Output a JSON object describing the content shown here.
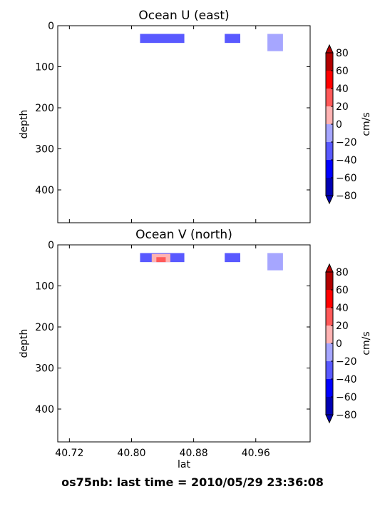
{
  "footer": "os75nb: last time = 2010/05/29 23:36:08",
  "chart_data": [
    {
      "type": "heatmap",
      "title": "Ocean U (east)",
      "xlabel": "",
      "ylabel": "depth",
      "xlim": [
        40.705,
        41.03
      ],
      "ylim": [
        0,
        480
      ],
      "y_inverted": true,
      "xticks": [
        40.72,
        40.8,
        40.88,
        40.96
      ],
      "xticklabels": [
        "",
        "",
        "",
        ""
      ],
      "yticks": [
        0,
        100,
        200,
        300,
        400
      ],
      "yticklabels": [
        "0",
        "100",
        "200",
        "300",
        "400"
      ],
      "cells": [
        {
          "lat": [
            40.811,
            40.868
          ],
          "depth": [
            20,
            42
          ],
          "value": -30
        },
        {
          "lat": [
            40.92,
            40.94
          ],
          "depth": [
            20,
            42
          ],
          "value": -30
        },
        {
          "lat": [
            40.975,
            40.995
          ],
          "depth": [
            20,
            62
          ],
          "value": -10
        }
      ],
      "colorbar": {
        "label": "cm/s",
        "levels": [
          -80,
          -60,
          -40,
          -20,
          0,
          20,
          40,
          60,
          80
        ],
        "ticklabels": [
          "80",
          "60",
          "40",
          "20",
          "0",
          "−20",
          "−40",
          "−60",
          "−80"
        ],
        "colors": [
          "#0000b3",
          "#0000ff",
          "#5959ff",
          "#a6a6ff",
          "#ffb3b3",
          "#ff5959",
          "#ff0000",
          "#b30000"
        ],
        "extend": "both"
      }
    },
    {
      "type": "heatmap",
      "title": "Ocean V (north)",
      "xlabel": "lat",
      "ylabel": "depth",
      "xlim": [
        40.705,
        41.03
      ],
      "ylim": [
        0,
        480
      ],
      "y_inverted": true,
      "xticks": [
        40.72,
        40.8,
        40.88,
        40.96
      ],
      "xticklabels": [
        "40.72",
        "40.80",
        "40.88",
        "40.96"
      ],
      "yticks": [
        0,
        100,
        200,
        300,
        400
      ],
      "yticklabels": [
        "0",
        "100",
        "200",
        "300",
        "400"
      ],
      "cells": [
        {
          "lat": [
            40.811,
            40.868
          ],
          "depth": [
            20,
            42
          ],
          "value": -30
        },
        {
          "lat": [
            40.826,
            40.85
          ],
          "depth": [
            22,
            42
          ],
          "value": 10
        },
        {
          "lat": [
            40.832,
            40.844
          ],
          "depth": [
            30,
            42
          ],
          "value": 30
        },
        {
          "lat": [
            40.92,
            40.94
          ],
          "depth": [
            20,
            42
          ],
          "value": -30
        },
        {
          "lat": [
            40.975,
            40.995
          ],
          "depth": [
            20,
            62
          ],
          "value": -10
        }
      ],
      "colorbar": {
        "label": "cm/s",
        "levels": [
          -80,
          -60,
          -40,
          -20,
          0,
          20,
          40,
          60,
          80
        ],
        "ticklabels": [
          "80",
          "60",
          "40",
          "20",
          "0",
          "−20",
          "−40",
          "−60",
          "−80"
        ],
        "colors": [
          "#0000b3",
          "#0000ff",
          "#5959ff",
          "#a6a6ff",
          "#ffb3b3",
          "#ff5959",
          "#ff0000",
          "#b30000"
        ],
        "extend": "both"
      }
    }
  ]
}
